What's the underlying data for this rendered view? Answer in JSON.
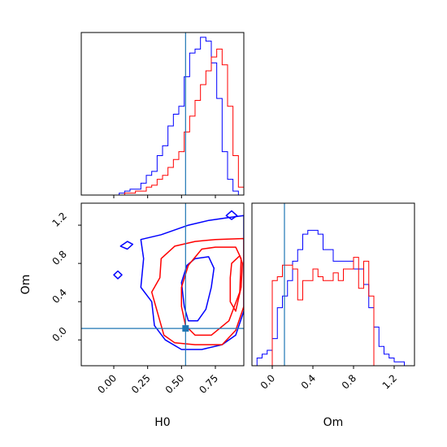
{
  "chart_data": {
    "type": "corner",
    "parameters": [
      "H0",
      "Om"
    ],
    "truth": {
      "H0": 0.53,
      "Om": 0.12
    },
    "colors": {
      "series_a": "#0000ff",
      "series_b": "#ff0000",
      "truth": "#1f77b4"
    },
    "panels": [
      {
        "id": "hist-H0",
        "type": "histogram",
        "xlim": [
          -0.24,
          0.96
        ],
        "bin_edges": [
          -0.24,
          -0.2,
          -0.16,
          -0.12,
          -0.08,
          -0.04,
          0,
          0.04,
          0.08,
          0.12,
          0.16,
          0.2,
          0.24,
          0.28,
          0.32,
          0.36,
          0.4,
          0.44,
          0.48,
          0.52,
          0.56,
          0.6,
          0.64,
          0.68,
          0.72,
          0.76,
          0.8,
          0.84,
          0.88,
          0.92,
          0.96
        ],
        "series": [
          {
            "color_key": "series_a",
            "counts": [
              0,
              0,
              0,
              0,
              0,
              0,
              0,
              1,
              2,
              3,
              3,
              6,
              10,
              12,
              20,
              25,
              35,
              41,
              45,
              60,
              72,
              74,
              80,
              78,
              67,
              49,
              22,
              8,
              2,
              0
            ]
          },
          {
            "color_key": "series_b",
            "counts": [
              0,
              0,
              0,
              0,
              0,
              0,
              0,
              0,
              1,
              1,
              2,
              2,
              4,
              5,
              8,
              10,
              14,
              18,
              22,
              32,
              40,
              48,
              56,
              63,
              70,
              74,
              66,
              45,
              20,
              4
            ]
          }
        ]
      },
      {
        "id": "hist-Om",
        "type": "histogram",
        "xlim": [
          -0.2,
          1.4
        ],
        "xticks": [
          "0.0",
          "0.4",
          "0.8",
          "1.2"
        ],
        "xlabel": "Om",
        "bin_edges": [
          -0.2,
          -0.15,
          -0.1,
          -0.05,
          0,
          0.05,
          0.1,
          0.15,
          0.2,
          0.25,
          0.3,
          0.35,
          0.4,
          0.45,
          0.5,
          0.55,
          0.6,
          0.65,
          0.7,
          0.75,
          0.8,
          0.85,
          0.9,
          0.95,
          1,
          1.05,
          1.1,
          1.15,
          1.2,
          1.25,
          1.3,
          1.35,
          1.4
        ],
        "series": [
          {
            "color_key": "series_a",
            "counts": [
              0,
              2,
              3,
              4,
              7,
              15,
              18,
              22,
              27,
              30,
              34,
              35,
              35,
              34,
              30,
              30,
              27,
              27,
              27,
              27,
              25,
              25,
              21,
              15,
              10,
              5,
              3,
              2,
              1,
              1,
              0,
              0
            ]
          },
          {
            "color_key": "series_b",
            "counts": [
              0,
              0,
              0,
              0,
              22,
              23,
              26,
              26,
              25,
              17,
              22,
              22,
              25,
              23,
              22,
              22,
              24,
              22,
              25,
              25,
              28,
              20,
              27,
              18,
              0,
              0,
              0,
              0,
              0,
              0,
              0,
              0
            ]
          }
        ]
      },
      {
        "id": "contour-H0-Om",
        "type": "contour",
        "xlim": [
          -0.24,
          0.96
        ],
        "ylim": [
          -0.27,
          1.43
        ],
        "xticks": [
          "0.00",
          "0.25",
          "0.50",
          "0.75"
        ],
        "yticks": [
          "0.0",
          "0.4",
          "0.8",
          "1.2"
        ],
        "xlabel": "H0",
        "ylabel": "Om",
        "contours": [
          {
            "color_key": "series_a",
            "points": [
              [
                0.2,
                1.05
              ],
              [
                0.35,
                1.1
              ],
              [
                0.55,
                1.2
              ],
              [
                0.7,
                1.25
              ],
              [
                0.85,
                1.28
              ],
              [
                0.96,
                1.3
              ],
              [
                0.96,
                0.3
              ],
              [
                0.9,
                0.05
              ],
              [
                0.8,
                -0.05
              ],
              [
                0.65,
                -0.1
              ],
              [
                0.5,
                -0.1
              ],
              [
                0.38,
                0.0
              ],
              [
                0.3,
                0.15
              ],
              [
                0.28,
                0.4
              ],
              [
                0.2,
                0.55
              ],
              [
                0.22,
                0.85
              ],
              [
                0.2,
                1.05
              ]
            ]
          },
          {
            "color_key": "series_a",
            "points": [
              [
                0.6,
                0.85
              ],
              [
                0.7,
                0.87
              ],
              [
                0.74,
                0.75
              ],
              [
                0.72,
                0.55
              ],
              [
                0.68,
                0.32
              ],
              [
                0.62,
                0.2
              ],
              [
                0.55,
                0.2
              ],
              [
                0.52,
                0.35
              ],
              [
                0.5,
                0.6
              ],
              [
                0.54,
                0.78
              ],
              [
                0.6,
                0.85
              ]
            ]
          },
          {
            "color_key": "series_a",
            "points": [
              [
                0.05,
                0.98
              ],
              [
                0.1,
                1.03
              ],
              [
                0.14,
                1.0
              ],
              [
                0.1,
                0.95
              ],
              [
                0.05,
                0.98
              ]
            ]
          },
          {
            "color_key": "series_a",
            "points": [
              [
                0.0,
                0.68
              ],
              [
                0.03,
                0.72
              ],
              [
                0.06,
                0.68
              ],
              [
                0.03,
                0.64
              ],
              [
                0.0,
                0.68
              ]
            ]
          },
          {
            "color_key": "series_a",
            "points": [
              [
                0.83,
                1.3
              ],
              [
                0.87,
                1.35
              ],
              [
                0.91,
                1.3
              ],
              [
                0.87,
                1.26
              ],
              [
                0.83,
                1.3
              ]
            ]
          },
          {
            "color_key": "series_b",
            "points": [
              [
                0.35,
                0.85
              ],
              [
                0.45,
                0.98
              ],
              [
                0.6,
                1.03
              ],
              [
                0.75,
                1.05
              ],
              [
                0.96,
                1.06
              ],
              [
                0.96,
                0.35
              ],
              [
                0.9,
                0.1
              ],
              [
                0.8,
                -0.05
              ],
              [
                0.6,
                -0.05
              ],
              [
                0.45,
                -0.03
              ],
              [
                0.37,
                0.05
              ],
              [
                0.33,
                0.25
              ],
              [
                0.28,
                0.5
              ],
              [
                0.34,
                0.65
              ],
              [
                0.35,
                0.85
              ]
            ]
          },
          {
            "color_key": "series_b",
            "points": [
              [
                0.55,
                0.78
              ],
              [
                0.65,
                0.95
              ],
              [
                0.75,
                0.97
              ],
              [
                0.9,
                0.97
              ],
              [
                0.94,
                0.85
              ],
              [
                0.93,
                0.5
              ],
              [
                0.85,
                0.2
              ],
              [
                0.72,
                0.05
              ],
              [
                0.6,
                0.05
              ],
              [
                0.53,
                0.15
              ],
              [
                0.5,
                0.35
              ],
              [
                0.5,
                0.55
              ],
              [
                0.55,
                0.78
              ]
            ]
          },
          {
            "color_key": "series_b",
            "points": [
              [
                0.87,
                0.8
              ],
              [
                0.93,
                0.88
              ],
              [
                0.95,
                0.8
              ],
              [
                0.94,
                0.55
              ],
              [
                0.9,
                0.3
              ],
              [
                0.86,
                0.4
              ],
              [
                0.86,
                0.65
              ],
              [
                0.87,
                0.8
              ]
            ]
          }
        ]
      }
    ]
  }
}
